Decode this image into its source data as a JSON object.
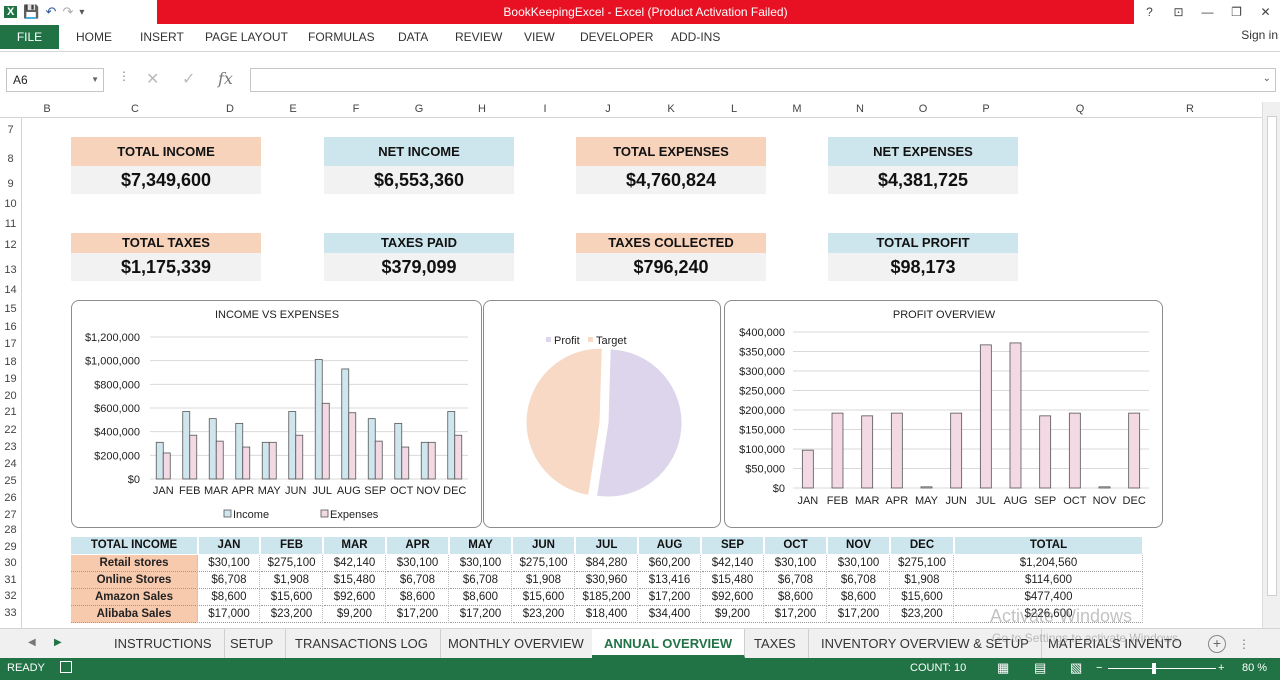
{
  "window": {
    "title": "BookKeepingExcel -  Excel (Product Activation Failed)",
    "controls": [
      "?",
      "⊡",
      "—",
      "❐",
      "✕"
    ]
  },
  "ribbon": {
    "file": "FILE",
    "tabs": [
      "HOME",
      "INSERT",
      "PAGE LAYOUT",
      "FORMULAS",
      "DATA",
      "REVIEW",
      "VIEW",
      "DEVELOPER",
      "ADD-INS"
    ],
    "signin": "Sign in"
  },
  "formula_bar": {
    "name_box": "A6",
    "fx": "fx",
    "formula": ""
  },
  "columns": [
    "B",
    "C",
    "D",
    "E",
    "F",
    "G",
    "H",
    "I",
    "J",
    "K",
    "L",
    "M",
    "N",
    "O",
    "P",
    "Q",
    "R"
  ],
  "rows": [
    "7",
    "8",
    "9",
    "10",
    "11",
    "12",
    "13",
    "14",
    "15",
    "16",
    "17",
    "18",
    "19",
    "20",
    "21",
    "22",
    "23",
    "24",
    "25",
    "26",
    "27",
    "28",
    "29",
    "30",
    "31",
    "32",
    "33"
  ],
  "kpis": [
    {
      "label": "TOTAL INCOME",
      "value": "$7,349,600",
      "color": "#f7d3bc"
    },
    {
      "label": "NET INCOME",
      "value": "$6,553,360",
      "color": "#cde5ec"
    },
    {
      "label": "TOTAL EXPENSES",
      "value": "$4,760,824",
      "color": "#f7d3bc"
    },
    {
      "label": "NET EXPENSES",
      "value": "$4,381,725",
      "color": "#cde5ec"
    },
    {
      "label": "TOTAL TAXES",
      "value": "$1,175,339",
      "color": "#f7d3bc"
    },
    {
      "label": "TAXES PAID",
      "value": "$379,099",
      "color": "#cde5ec"
    },
    {
      "label": "TAXES COLLECTED",
      "value": "$796,240",
      "color": "#f7d3bc"
    },
    {
      "label": "TOTAL PROFIT",
      "value": "$98,173",
      "color": "#cde5ec"
    }
  ],
  "chart_data": [
    {
      "type": "bar",
      "title": "INCOME VS EXPENSES",
      "categories": [
        "JAN",
        "FEB",
        "MAR",
        "APR",
        "MAY",
        "JUN",
        "JUL",
        "AUG",
        "SEP",
        "OCT",
        "NOV",
        "DEC"
      ],
      "series": [
        {
          "name": "Income",
          "color": "#cfe6ee",
          "values": [
            310000,
            570000,
            510000,
            470000,
            310000,
            570000,
            1010000,
            930000,
            510000,
            470000,
            310000,
            570000
          ]
        },
        {
          "name": "Expenses",
          "color": "#f2d9e3",
          "values": [
            220000,
            370000,
            320000,
            270000,
            310000,
            370000,
            640000,
            560000,
            320000,
            270000,
            310000,
            370000
          ]
        }
      ],
      "ylim": [
        0,
        1200000
      ],
      "yticks": [
        "$0",
        "$200,000",
        "$400,000",
        "$600,000",
        "$800,000",
        "$1,000,000",
        "$1,200,000"
      ],
      "legend": "bottom",
      "grid": true
    },
    {
      "type": "pie",
      "title": "",
      "slices": [
        {
          "name": "Profit",
          "value": 52,
          "color": "#dcd5ec"
        },
        {
          "name": "Target",
          "value": 48,
          "color": "#f7d9c6"
        }
      ],
      "legend": "top"
    },
    {
      "type": "bar",
      "title": "PROFIT OVERVIEW",
      "categories": [
        "JAN",
        "FEB",
        "MAR",
        "APR",
        "MAY",
        "JUN",
        "JUL",
        "AUG",
        "SEP",
        "OCT",
        "NOV",
        "DEC"
      ],
      "series": [
        {
          "name": "Profit",
          "color": "#f2d9e3",
          "values": [
            97000,
            192000,
            185000,
            192000,
            3000,
            192000,
            367000,
            372000,
            185000,
            192000,
            3000,
            192000
          ]
        }
      ],
      "ylim": [
        0,
        400000
      ],
      "yticks": [
        "$0",
        "$50,000",
        "$100,000",
        "$150,000",
        "$200,000",
        "$250,000",
        "$300,000",
        "$350,000",
        "$400,000"
      ],
      "grid": true
    }
  ],
  "table": {
    "headers": [
      "TOTAL INCOME",
      "JAN",
      "FEB",
      "MAR",
      "APR",
      "MAY",
      "JUN",
      "JUL",
      "AUG",
      "SEP",
      "OCT",
      "NOV",
      "DEC",
      "TOTAL"
    ],
    "rows": [
      [
        "Retail stores",
        "$30,100",
        "$275,100",
        "$42,140",
        "$30,100",
        "$30,100",
        "$275,100",
        "$84,280",
        "$60,200",
        "$42,140",
        "$30,100",
        "$30,100",
        "$275,100",
        "$1,204,560"
      ],
      [
        "Online Stores",
        "$6,708",
        "$1,908",
        "$15,480",
        "$6,708",
        "$6,708",
        "$1,908",
        "$30,960",
        "$13,416",
        "$15,480",
        "$6,708",
        "$6,708",
        "$1,908",
        "$114,600"
      ],
      [
        "Amazon Sales",
        "$8,600",
        "$15,600",
        "$92,600",
        "$8,600",
        "$8,600",
        "$15,600",
        "$185,200",
        "$17,200",
        "$92,600",
        "$8,600",
        "$8,600",
        "$15,600",
        "$477,400"
      ],
      [
        "Alibaba Sales",
        "$17,000",
        "$23,200",
        "$9,200",
        "$17,200",
        "$17,200",
        "$23,200",
        "$18,400",
        "$34,400",
        "$9,200",
        "$17,200",
        "$17,200",
        "$23,200",
        "$226,600"
      ]
    ]
  },
  "sheet_tabs": {
    "tabs": [
      "INSTRUCTIONS",
      "SETUP",
      "TRANSACTIONS LOG",
      "MONTHLY OVERVIEW",
      "ANNUAL OVERVIEW",
      "TAXES",
      "INVENTORY OVERVIEW & SETUP",
      "MATERIALS INVENTO ..."
    ],
    "active": "ANNUAL OVERVIEW"
  },
  "watermark": {
    "line1": "Activate Windows",
    "line2": "Go to Settings to activate Windows."
  },
  "status": {
    "mode": "READY",
    "count": "COUNT: 10",
    "zoom": "80 %"
  }
}
